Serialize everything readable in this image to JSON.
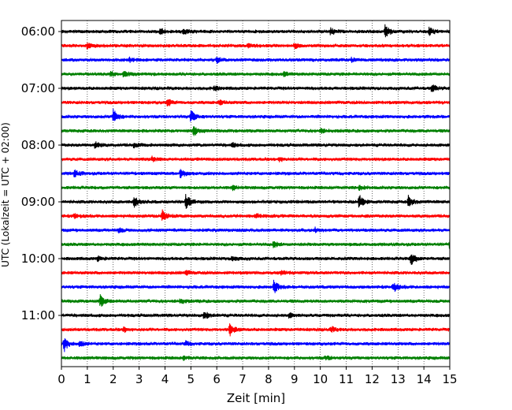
{
  "chart_data": {
    "type": "helicorder",
    "xlabel": "Zeit  [min]",
    "ylabel": "UTC (Lokalzeit = UTC + 02:00)",
    "xlim": [
      0,
      15
    ],
    "xticks": [
      0,
      1,
      2,
      3,
      4,
      5,
      6,
      7,
      8,
      9,
      10,
      11,
      12,
      13,
      14,
      15
    ],
    "xtick_labels": [
      "0",
      "1",
      "2",
      "3",
      "4",
      "5",
      "6",
      "7",
      "8",
      "9",
      "10",
      "11",
      "12",
      "13",
      "14",
      "15"
    ],
    "ytick_labels": [
      "06:00",
      "07:00",
      "08:00",
      "09:00",
      "10:00",
      "11:00"
    ],
    "ytick_rows": [
      0,
      4,
      8,
      12,
      16,
      20
    ],
    "grid": "vertical dotted at each minute",
    "color_cycle": [
      "#000000",
      "#ff0000",
      "#0000ff",
      "#008000"
    ],
    "rows": [
      {
        "start": "06:00",
        "events": [
          [
            3.8,
            0.5
          ],
          [
            4.7,
            0.4
          ],
          [
            10.4,
            0.5
          ],
          [
            12.5,
            1.0
          ],
          [
            14.2,
            0.6
          ]
        ]
      },
      {
        "start": "06:15",
        "events": [
          [
            1.0,
            0.4
          ],
          [
            7.2,
            0.3
          ],
          [
            9.0,
            0.3
          ]
        ]
      },
      {
        "start": "06:30",
        "events": [
          [
            6.0,
            0.4
          ],
          [
            2.6,
            0.3
          ],
          [
            11.2,
            0.3
          ]
        ]
      },
      {
        "start": "06:45",
        "events": [
          [
            2.4,
            0.4
          ],
          [
            1.9,
            0.3
          ],
          [
            8.6,
            0.3
          ]
        ]
      },
      {
        "start": "07:00",
        "events": [
          [
            5.9,
            0.3
          ],
          [
            14.3,
            0.5
          ]
        ]
      },
      {
        "start": "07:15",
        "events": [
          [
            4.1,
            0.5
          ],
          [
            6.1,
            0.3
          ]
        ]
      },
      {
        "start": "07:30",
        "events": [
          [
            2.0,
            1.0
          ],
          [
            5.0,
            0.9
          ]
        ]
      },
      {
        "start": "07:45",
        "events": [
          [
            5.1,
            0.9
          ],
          [
            10.0,
            0.3
          ]
        ]
      },
      {
        "start": "08:00",
        "events": [
          [
            1.3,
            0.5
          ],
          [
            2.8,
            0.3
          ],
          [
            6.6,
            0.3
          ]
        ]
      },
      {
        "start": "08:15",
        "events": [
          [
            3.5,
            0.3
          ],
          [
            8.4,
            0.3
          ]
        ]
      },
      {
        "start": "08:30",
        "events": [
          [
            0.5,
            0.5
          ],
          [
            4.6,
            0.6
          ]
        ]
      },
      {
        "start": "08:45",
        "events": [
          [
            6.6,
            0.3
          ],
          [
            11.5,
            0.3
          ]
        ]
      },
      {
        "start": "09:00",
        "events": [
          [
            2.8,
            0.9
          ],
          [
            4.8,
            1.0
          ],
          [
            11.5,
            0.9
          ],
          [
            13.4,
            0.8
          ]
        ]
      },
      {
        "start": "09:15",
        "events": [
          [
            0.5,
            0.4
          ],
          [
            3.9,
            0.8
          ],
          [
            7.5,
            0.3
          ]
        ]
      },
      {
        "start": "09:30",
        "events": [
          [
            2.2,
            0.3
          ],
          [
            9.8,
            0.3
          ]
        ]
      },
      {
        "start": "09:45",
        "events": [
          [
            8.2,
            0.5
          ],
          [
            15.0,
            0.6
          ]
        ]
      },
      {
        "start": "10:00",
        "events": [
          [
            1.4,
            0.3
          ],
          [
            6.6,
            0.4
          ],
          [
            13.5,
            1.0
          ]
        ]
      },
      {
        "start": "10:15",
        "events": [
          [
            4.8,
            0.3
          ],
          [
            8.5,
            0.3
          ]
        ]
      },
      {
        "start": "10:30",
        "events": [
          [
            8.2,
            0.9
          ],
          [
            12.8,
            0.8
          ]
        ]
      },
      {
        "start": "10:45",
        "events": [
          [
            1.5,
            0.8
          ],
          [
            4.6,
            0.3
          ]
        ]
      },
      {
        "start": "11:00",
        "events": [
          [
            5.5,
            0.7
          ],
          [
            8.8,
            0.3
          ]
        ]
      },
      {
        "start": "11:15",
        "events": [
          [
            6.5,
            0.9
          ],
          [
            2.4,
            0.3
          ],
          [
            10.4,
            0.4
          ]
        ]
      },
      {
        "start": "11:30",
        "events": [
          [
            0.1,
            1.0
          ],
          [
            0.7,
            0.4
          ],
          [
            4.8,
            0.3
          ]
        ]
      },
      {
        "start": "11:45",
        "events": [
          [
            4.7,
            0.3
          ],
          [
            10.2,
            0.3
          ]
        ]
      }
    ]
  }
}
